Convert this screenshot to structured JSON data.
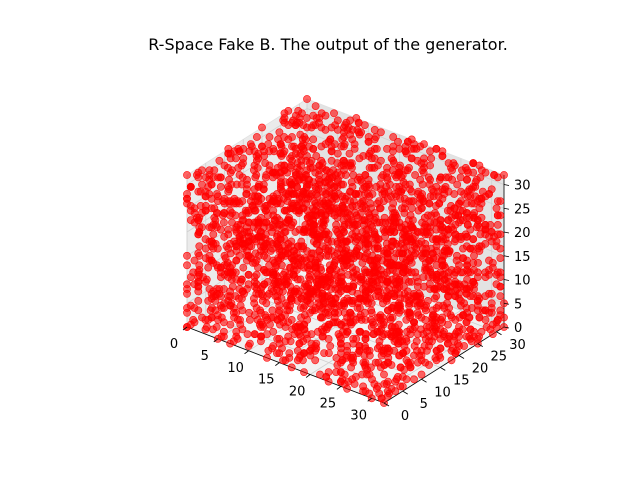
{
  "chart_data": {
    "type": "scatter",
    "projection": "3d",
    "title": "R-Space Fake B. The output of the generator.",
    "xlabel": "",
    "ylabel": "",
    "zlabel": "",
    "xlim": [
      0,
      32
    ],
    "ylim": [
      0,
      32
    ],
    "zlim": [
      0,
      32
    ],
    "xticks": [
      "0",
      "5",
      "10",
      "15",
      "20",
      "25",
      "30"
    ],
    "yticks": [
      "0",
      "5",
      "10",
      "15",
      "20",
      "25",
      "30"
    ],
    "zticks": [
      "0",
      "5",
      "10",
      "15",
      "20",
      "25",
      "30"
    ],
    "grid": true,
    "legend": false,
    "series": [
      {
        "marker": "circle",
        "color": "#ff0000",
        "alpha": 0.6,
        "points_description": "dense voxel cloud filling the 0–32 cube",
        "sample_points": [
          [
            0,
            0,
            0
          ],
          [
            32,
            32,
            32
          ],
          [
            16,
            16,
            16
          ],
          [
            0,
            32,
            0
          ],
          [
            32,
            0,
            0
          ],
          [
            0,
            0,
            32
          ],
          [
            32,
            32,
            0
          ],
          [
            0,
            32,
            32
          ],
          [
            32,
            0,
            32
          ],
          [
            8,
            24,
            12
          ],
          [
            24,
            8,
            20
          ],
          [
            12,
            12,
            28
          ],
          [
            28,
            20,
            4
          ],
          [
            4,
            28,
            16
          ],
          [
            20,
            4,
            8
          ]
        ]
      }
    ]
  }
}
